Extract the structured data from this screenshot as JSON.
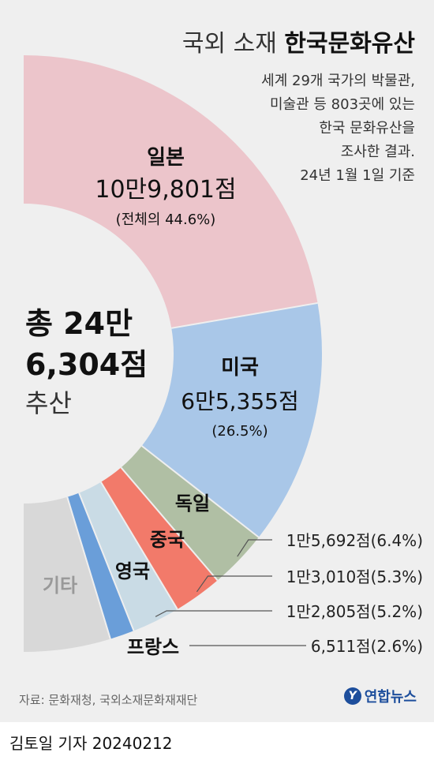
{
  "title": {
    "light": "국외 소재",
    "bold": "한국문화유산"
  },
  "note": [
    "세계 29개 국가의 박물관,",
    "미술관 등 803곳에 있는",
    "한국 문화유산을",
    "조사한 결과.",
    "24년 1월 1일 기준"
  ],
  "total": {
    "line1": "총 24만",
    "line2": "6,304점",
    "line3": "추산"
  },
  "chart_data": {
    "type": "pie",
    "subtype": "half-donut",
    "slices": [
      {
        "name": "일본",
        "value_text": "10만9,801점",
        "pct_text": "(전체의 44.6%)",
        "value": 109801,
        "pct": 44.6,
        "color": "#ecc5cb",
        "label_color": "#111111"
      },
      {
        "name": "미국",
        "value_text": "6만5,355점",
        "pct_text": "(26.5%)",
        "value": 65355,
        "pct": 26.5,
        "color": "#a9c7e8",
        "label_color": "#111111"
      },
      {
        "name": "독일",
        "value_text": "1만5,692점(6.4%)",
        "pct_text": "",
        "value": 15692,
        "pct": 6.4,
        "color": "#b0bfa4",
        "label_color": "#111111"
      },
      {
        "name": "중국",
        "value_text": "1만3,010점(5.3%)",
        "pct_text": "",
        "value": 13010,
        "pct": 5.3,
        "color": "#f27a6a",
        "label_color": "#111111"
      },
      {
        "name": "영국",
        "value_text": "1만2,805점(5.2%)",
        "pct_text": "",
        "value": 12805,
        "pct": 5.2,
        "color": "#c9dbe5",
        "label_color": "#111111"
      },
      {
        "name": "프랑스",
        "value_text": "6,511점(2.6%)",
        "pct_text": "",
        "value": 6511,
        "pct": 2.6,
        "color": "#6a9ed9",
        "label_color": "#111111"
      },
      {
        "name": "기타",
        "value_text": "",
        "pct_text": "",
        "value": 23130,
        "pct": 9.4,
        "color": "#d8d8d8",
        "label_color": "#999999"
      }
    ]
  },
  "source": "자료: 문화재청, 국외소재문화재재단",
  "logo": {
    "mark": "Y",
    "name": "연합뉴스"
  },
  "byline": "김토일 기자  20240212"
}
